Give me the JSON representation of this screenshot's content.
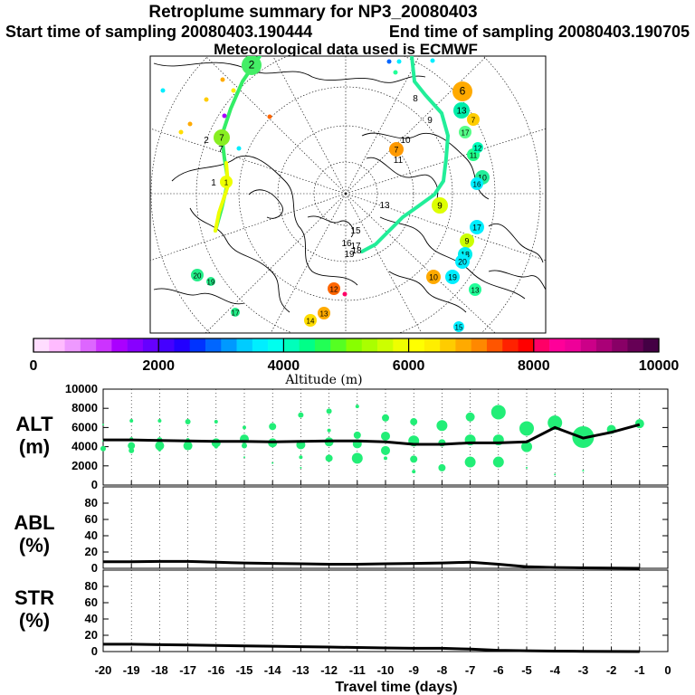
{
  "header": {
    "title": "Retroplume summary for NP3_20080403",
    "start_label": "Start time of sampling 20080403.190444",
    "end_label": "End time of sampling 20080403.190705",
    "met_label": "Meteorological data used is ECMWF"
  },
  "colors": {
    "colorbar": [
      "#ffddff",
      "#ffbbff",
      "#ee99ff",
      "#dd66ff",
      "#cc33ff",
      "#aa00ff",
      "#8800ff",
      "#6600ff",
      "#4400ff",
      "#2200ff",
      "#0033ff",
      "#0066ff",
      "#0099ff",
      "#00ccff",
      "#00eeff",
      "#00ffee",
      "#00ffbb",
      "#00ff88",
      "#22ff55",
      "#55ff22",
      "#88ff00",
      "#aaff00",
      "#ccff00",
      "#eeff00",
      "#ffff00",
      "#ffee00",
      "#ffcc00",
      "#ffaa00",
      "#ff8800",
      "#ff5500",
      "#ff2200",
      "#ff0000",
      "#ff0066",
      "#ff0099",
      "#ee0099",
      "#cc0088",
      "#aa0077",
      "#880066",
      "#660055",
      "#440044"
    ],
    "plume": "#22ee77",
    "line": "#000000"
  },
  "chart_data": [
    {
      "type": "map",
      "title": "Retroplume map (polar stereographic)",
      "trajectory_labels": [
        {
          "day": "1",
          "value": "1"
        },
        {
          "day": "2",
          "value": "2"
        },
        {
          "day": "7",
          "value": "7"
        },
        {
          "day": "8",
          "value": "8"
        },
        {
          "day": "9",
          "value": "9"
        },
        {
          "day": "10",
          "value": "10"
        },
        {
          "day": "11",
          "value": "11"
        },
        {
          "day": "13",
          "value": "13"
        },
        {
          "day": "15",
          "value": "15"
        },
        {
          "day": "16",
          "value": "16"
        },
        {
          "day": "17",
          "value": "17"
        },
        {
          "day": "18",
          "value": "18"
        },
        {
          "day": "19",
          "value": "19"
        }
      ],
      "cluster_labels": [
        {
          "label": "6",
          "color": "#ffaa00",
          "size": 22
        },
        {
          "label": "13",
          "color": "#00eeaa",
          "size": 18
        },
        {
          "label": "7",
          "color": "#ffcc00",
          "size": 14
        },
        {
          "label": "17",
          "color": "#55ff88",
          "size": 14
        },
        {
          "label": "11",
          "color": "#22ff88",
          "size": 14
        },
        {
          "label": "12",
          "color": "#00ffbb",
          "size": 12
        },
        {
          "label": "10",
          "color": "#22ee99",
          "size": 16
        },
        {
          "label": "16",
          "color": "#00eeff",
          "size": 14
        },
        {
          "label": "7",
          "color": "#ff9900",
          "size": 16
        },
        {
          "label": "9",
          "color": "#ddff00",
          "size": 18
        },
        {
          "label": "17",
          "color": "#00eeff",
          "size": 16
        },
        {
          "label": "9",
          "color": "#ccff00",
          "size": 16
        },
        {
          "label": "18",
          "color": "#00eeee",
          "size": 16
        },
        {
          "label": "20",
          "color": "#00eeff",
          "size": 16
        },
        {
          "label": "19",
          "color": "#00eeff",
          "size": 16
        },
        {
          "label": "10",
          "color": "#ffaa00",
          "size": 16
        },
        {
          "label": "13",
          "color": "#22ff99",
          "size": 14
        },
        {
          "label": "15",
          "color": "#00eeff",
          "size": 12
        },
        {
          "label": "12",
          "color": "#ff6600",
          "size": 14
        },
        {
          "label": "13",
          "color": "#ffaa00",
          "size": 14
        },
        {
          "label": "14",
          "color": "#ffdd00",
          "size": 14
        },
        {
          "label": "20",
          "color": "#22ee88",
          "size": 14
        },
        {
          "label": "19",
          "color": "#22ee88",
          "size": 10
        },
        {
          "label": "17",
          "color": "#22ee88",
          "size": 10
        },
        {
          "label": "7",
          "color": "#88ee22",
          "size": 18
        },
        {
          "label": "2",
          "color": "#44ee66",
          "size": 22
        },
        {
          "label": "1",
          "color": "#eeff00",
          "size": 14
        }
      ],
      "colorbar": {
        "label": "Altitude (m)",
        "ticks": [
          "0",
          "2000",
          "4000",
          "6000",
          "8000",
          "10000"
        ],
        "range": [
          0,
          10000
        ]
      }
    },
    {
      "type": "scatter",
      "panel": "ALT",
      "ylabel_top": "ALT",
      "ylabel_unit": "(m)",
      "ylim": [
        0,
        10000
      ],
      "yticks": [
        "0",
        "2000",
        "4000",
        "6000",
        "8000",
        "10000"
      ],
      "x": [
        -20,
        -19,
        -18,
        -17,
        -16,
        -15,
        -14,
        -13,
        -12,
        -11,
        -10,
        -9,
        -8,
        -7,
        -6,
        -5,
        -4,
        -3,
        -2,
        -1
      ],
      "mean_line": [
        4700,
        4700,
        4650,
        4600,
        4550,
        4550,
        4500,
        4550,
        4600,
        4600,
        4500,
        4250,
        4250,
        4400,
        4400,
        4500,
        6000,
        4900,
        5500,
        6300
      ],
      "clusters": [
        [
          [
            6300,
            1
          ],
          [
            3800,
            3
          ],
          [
            4600,
            1
          ]
        ],
        [
          [
            6700,
            2
          ],
          [
            4100,
            4
          ],
          [
            3600,
            3
          ],
          [
            4800,
            2
          ]
        ],
        [
          [
            6700,
            2
          ],
          [
            4100,
            5
          ],
          [
            4700,
            3
          ],
          [
            3700,
            2
          ]
        ],
        [
          [
            6600,
            3
          ],
          [
            4100,
            5
          ],
          [
            4700,
            2
          ]
        ],
        [
          [
            6600,
            2
          ],
          [
            4400,
            5
          ],
          [
            4000,
            2
          ]
        ],
        [
          [
            6000,
            2
          ],
          [
            4800,
            5
          ],
          [
            4100,
            3
          ],
          [
            2900,
            1
          ]
        ],
        [
          [
            6100,
            4
          ],
          [
            4400,
            5
          ],
          [
            2300,
            1
          ]
        ],
        [
          [
            7300,
            3
          ],
          [
            4200,
            5
          ],
          [
            2900,
            2
          ],
          [
            1800,
            1
          ]
        ],
        [
          [
            7700,
            3
          ],
          [
            5700,
            2
          ],
          [
            4500,
            5
          ],
          [
            2800,
            4
          ]
        ],
        [
          [
            8200,
            2
          ],
          [
            5200,
            4
          ],
          [
            4300,
            5
          ],
          [
            2800,
            6
          ]
        ],
        [
          [
            7000,
            4
          ],
          [
            5100,
            5
          ],
          [
            3600,
            5
          ],
          [
            2800,
            2
          ]
        ],
        [
          [
            6600,
            4
          ],
          [
            4600,
            6
          ],
          [
            2700,
            4
          ],
          [
            1400,
            2
          ]
        ],
        [
          [
            6200,
            6
          ],
          [
            4400,
            4
          ],
          [
            1800,
            4
          ]
        ],
        [
          [
            7100,
            5
          ],
          [
            4700,
            6
          ],
          [
            2400,
            6
          ]
        ],
        [
          [
            7600,
            8
          ],
          [
            4700,
            6
          ],
          [
            2400,
            6
          ]
        ],
        [
          [
            5900,
            8
          ],
          [
            4000,
            6
          ],
          [
            1800,
            1
          ]
        ],
        [
          [
            6500,
            8
          ],
          [
            1100,
            1
          ]
        ],
        [
          [
            5000,
            12
          ],
          [
            1500,
            1
          ]
        ],
        [
          [
            5800,
            5
          ]
        ],
        [
          [
            6400,
            5
          ]
        ]
      ]
    },
    {
      "type": "line",
      "panel": "ABL",
      "ylabel_top": "ABL",
      "ylabel_unit": "(%)",
      "ylim": [
        0,
        100
      ],
      "yticks": [
        "0",
        "20",
        "40",
        "60",
        "80"
      ],
      "x": [
        -20,
        -19,
        -18,
        -17,
        -16,
        -15,
        -14,
        -13,
        -12,
        -11,
        -10,
        -9,
        -8,
        -7,
        -6,
        -5,
        -4,
        -3,
        -2,
        -1
      ],
      "values": [
        8,
        8,
        8.5,
        8.5,
        7.5,
        6.5,
        6,
        5.5,
        5,
        5,
        5.5,
        6,
        6.5,
        7.5,
        5,
        2,
        1,
        0.5,
        0.3,
        0
      ]
    },
    {
      "type": "line",
      "panel": "STR",
      "ylabel_top": "STR",
      "ylabel_unit": "(%)",
      "ylim": [
        0,
        100
      ],
      "yticks": [
        "0",
        "20",
        "40",
        "60",
        "80"
      ],
      "x": [
        -20,
        -19,
        -18,
        -17,
        -16,
        -15,
        -14,
        -13,
        -12,
        -11,
        -10,
        -9,
        -8,
        -7,
        -6,
        -5,
        -4,
        -3,
        -2,
        -1
      ],
      "values": [
        9,
        9,
        8.5,
        8,
        7.5,
        7,
        6.5,
        6,
        5.5,
        5,
        4.5,
        4,
        4,
        3,
        1.5,
        1,
        0.5,
        0.3,
        0.2,
        0
      ],
      "xlabel": "Travel time (days)",
      "xticks": [
        "-20",
        "-19",
        "-18",
        "-17",
        "-16",
        "-15",
        "-14",
        "-13",
        "-12",
        "-11",
        "-10",
        "-9",
        "-8",
        "-7",
        "-6",
        "-5",
        "-4",
        "-3",
        "-2",
        "-1",
        "0"
      ]
    }
  ]
}
